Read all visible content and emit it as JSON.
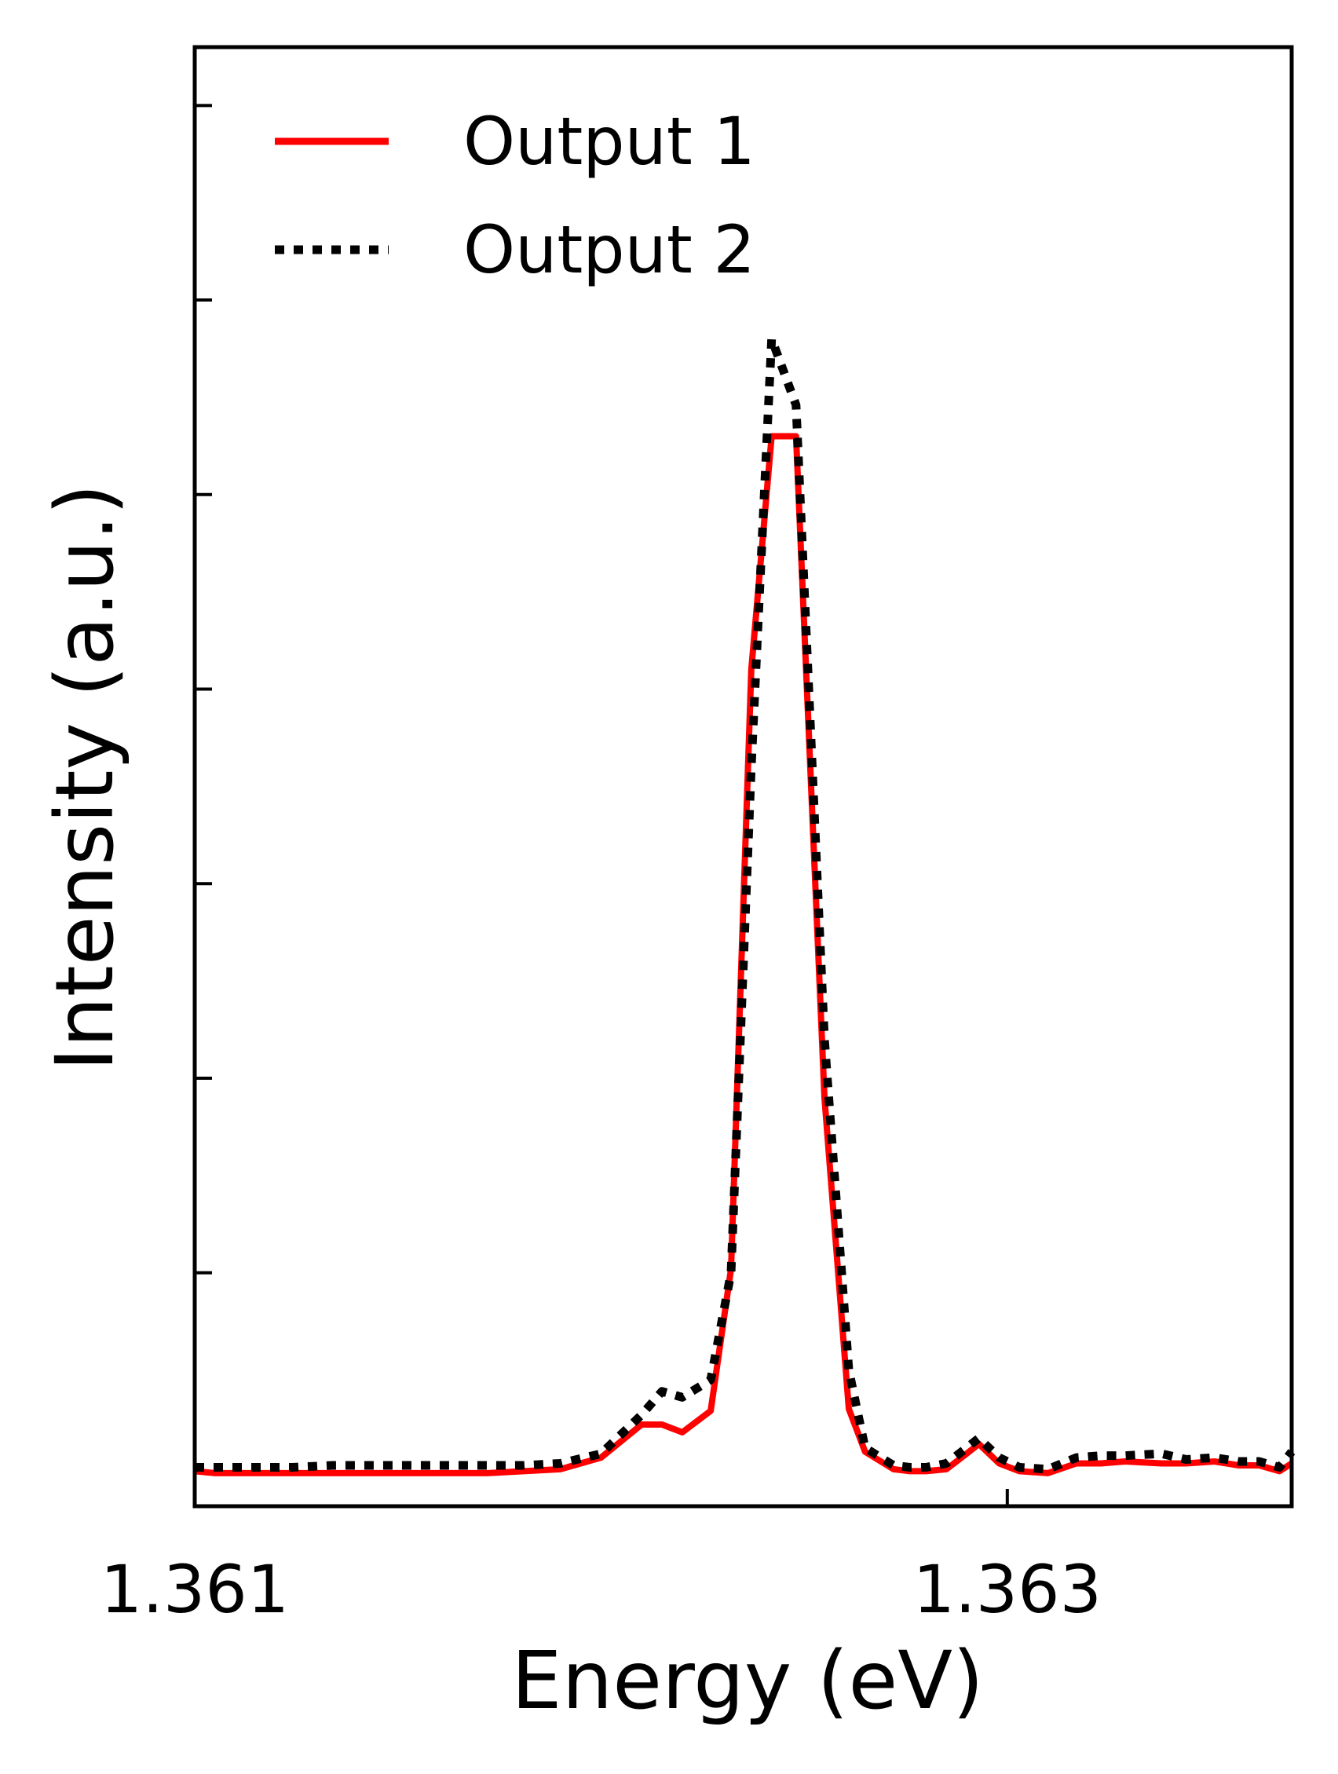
{
  "chart_data": {
    "type": "line",
    "xlabel": "Energy (eV)",
    "ylabel": "Intensity (a.u.)",
    "xlim": [
      1.361,
      1.3637
    ],
    "ylim": [
      -0.02,
      0.73
    ],
    "x_ticks": [
      {
        "value": 1.361,
        "label": "1.361"
      },
      {
        "value": 1.363,
        "label": "1.363"
      }
    ],
    "y_ticks": [
      0.1,
      0.2,
      0.3,
      0.4,
      0.5,
      0.6,
      0.7
    ],
    "y_tick_labels_shown": false,
    "grid": false,
    "legend": {
      "position": "top-left"
    },
    "series": [
      {
        "name": "Output 1",
        "color": "#ff0000",
        "linestyle": "solid",
        "x": [
          1.361,
          1.36105,
          1.36114,
          1.36124,
          1.36134,
          1.36143,
          1.36152,
          1.36162,
          1.36172,
          1.36181,
          1.3619,
          1.362,
          1.3621,
          1.36215,
          1.3622,
          1.36227,
          1.36232,
          1.36237,
          1.36242,
          1.36248,
          1.36255,
          1.36261,
          1.36265,
          1.36272,
          1.36276,
          1.3628,
          1.36285,
          1.3629,
          1.36293,
          1.36298,
          1.36303,
          1.3631,
          1.36317,
          1.36323,
          1.36329,
          1.36338,
          1.36344,
          1.36351,
          1.36357,
          1.36362,
          1.36367,
          1.3637
        ],
        "y": [
          -0.002,
          -0.003,
          -0.003,
          -0.003,
          -0.003,
          -0.003,
          -0.003,
          -0.003,
          -0.003,
          -0.002,
          -0.001,
          0.005,
          0.022,
          0.022,
          0.018,
          0.029,
          0.102,
          0.41,
          0.53,
          0.53,
          0.19,
          0.03,
          0.008,
          -0.001,
          -0.002,
          -0.002,
          -0.001,
          0.007,
          0.012,
          0.002,
          -0.002,
          -0.003,
          0.002,
          0.002,
          0.003,
          0.002,
          0.002,
          0.003,
          0.001,
          0.001,
          -0.002,
          0.002
        ]
      },
      {
        "name": "Output 2",
        "color": "#000000",
        "linestyle": "dotted",
        "x": [
          1.361,
          1.36105,
          1.36114,
          1.36124,
          1.36134,
          1.36143,
          1.36152,
          1.36162,
          1.36172,
          1.36181,
          1.3619,
          1.362,
          1.3621,
          1.36215,
          1.3622,
          1.36227,
          1.36232,
          1.36237,
          1.36242,
          1.36248,
          1.36255,
          1.36261,
          1.36265,
          1.36272,
          1.36276,
          1.3628,
          1.36285,
          1.3629,
          1.36293,
          1.36298,
          1.36303,
          1.3631,
          1.36317,
          1.36323,
          1.36329,
          1.36338,
          1.36344,
          1.36351,
          1.36357,
          1.36362,
          1.36367,
          1.3637
        ],
        "y": [
          0.0,
          0.0,
          0.0,
          0.0,
          0.001,
          0.001,
          0.001,
          0.001,
          0.001,
          0.001,
          0.002,
          0.007,
          0.027,
          0.039,
          0.036,
          0.045,
          0.1,
          0.36,
          0.58,
          0.546,
          0.22,
          0.05,
          0.01,
          0.001,
          0.0,
          0.0,
          0.002,
          0.01,
          0.015,
          0.005,
          0.0,
          -0.001,
          0.005,
          0.006,
          0.006,
          0.007,
          0.004,
          0.005,
          0.003,
          0.003,
          0.0,
          0.008
        ]
      }
    ]
  }
}
